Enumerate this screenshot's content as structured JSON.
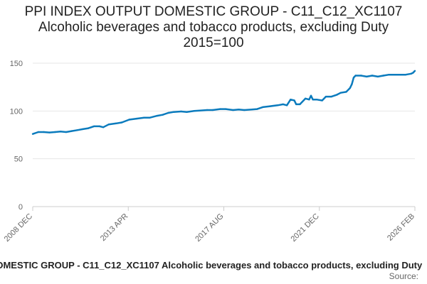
{
  "chart_data": {
    "type": "line",
    "title": "PPI INDEX OUTPUT DOMESTIC GROUP - C11_C12_XC1107",
    "subtitle": "Alcoholic beverages and tobacco products, excluding Duty",
    "note": "2015=100",
    "xlabel": "",
    "ylabel": "",
    "ylim": [
      0,
      150
    ],
    "yticks": [
      0,
      50,
      100,
      150
    ],
    "xticks": [
      "2008 DEC",
      "2013 APR",
      "2017 AUG",
      "2021 DEC",
      "2026 FEB"
    ],
    "xrange": [
      "2008-12",
      "2026-02"
    ],
    "grid": true,
    "series": [
      {
        "name": "",
        "color": "#0b7bbd",
        "points": [
          [
            "2008-12",
            76
          ],
          [
            "2009-03",
            78
          ],
          [
            "2009-06",
            78
          ],
          [
            "2009-09",
            77.5
          ],
          [
            "2009-12",
            78
          ],
          [
            "2010-03",
            78.5
          ],
          [
            "2010-06",
            78
          ],
          [
            "2010-09",
            79
          ],
          [
            "2010-12",
            80
          ],
          [
            "2011-03",
            81
          ],
          [
            "2011-06",
            82
          ],
          [
            "2011-09",
            84
          ],
          [
            "2011-12",
            84
          ],
          [
            "2012-02",
            83
          ],
          [
            "2012-05",
            86
          ],
          [
            "2012-09",
            87
          ],
          [
            "2012-12",
            88
          ],
          [
            "2013-04",
            91
          ],
          [
            "2013-08",
            92
          ],
          [
            "2013-12",
            93
          ],
          [
            "2014-03",
            93
          ],
          [
            "2014-07",
            95
          ],
          [
            "2014-10",
            96
          ],
          [
            "2015-01",
            98
          ],
          [
            "2015-04",
            99
          ],
          [
            "2015-08",
            99.5
          ],
          [
            "2015-11",
            99
          ],
          [
            "2016-03",
            100
          ],
          [
            "2016-06",
            100.5
          ],
          [
            "2016-10",
            101
          ],
          [
            "2017-01",
            101
          ],
          [
            "2017-05",
            102
          ],
          [
            "2017-08",
            102
          ],
          [
            "2017-12",
            101
          ],
          [
            "2018-03",
            101.5
          ],
          [
            "2018-06",
            101
          ],
          [
            "2018-10",
            101.5
          ],
          [
            "2019-01",
            102
          ],
          [
            "2019-04",
            104
          ],
          [
            "2019-08",
            105
          ],
          [
            "2019-12",
            106
          ],
          [
            "2020-03",
            107
          ],
          [
            "2020-05",
            106
          ],
          [
            "2020-07",
            112
          ],
          [
            "2020-09",
            111
          ],
          [
            "2020-10",
            107
          ],
          [
            "2020-12",
            107
          ],
          [
            "2021-03",
            113
          ],
          [
            "2021-05",
            112
          ],
          [
            "2021-06",
            116
          ],
          [
            "2021-07",
            112
          ],
          [
            "2021-09",
            112
          ],
          [
            "2021-12",
            111
          ],
          [
            "2022-02",
            115
          ],
          [
            "2022-05",
            115
          ],
          [
            "2022-08",
            117
          ],
          [
            "2022-10",
            119
          ],
          [
            "2023-01",
            120
          ],
          [
            "2023-03",
            124
          ],
          [
            "2023-04",
            128
          ],
          [
            "2023-05",
            135
          ],
          [
            "2023-06",
            137
          ],
          [
            "2023-09",
            137
          ],
          [
            "2023-12",
            136
          ],
          [
            "2024-03",
            137
          ],
          [
            "2024-06",
            136
          ],
          [
            "2024-09",
            137
          ],
          [
            "2024-12",
            138
          ],
          [
            "2025-03",
            138
          ],
          [
            "2025-06",
            138
          ],
          [
            "2025-09",
            138
          ],
          [
            "2025-12",
            139
          ],
          [
            "2026-01",
            140
          ],
          [
            "2026-02",
            142
          ]
        ]
      }
    ],
    "source_label": "Source:"
  }
}
